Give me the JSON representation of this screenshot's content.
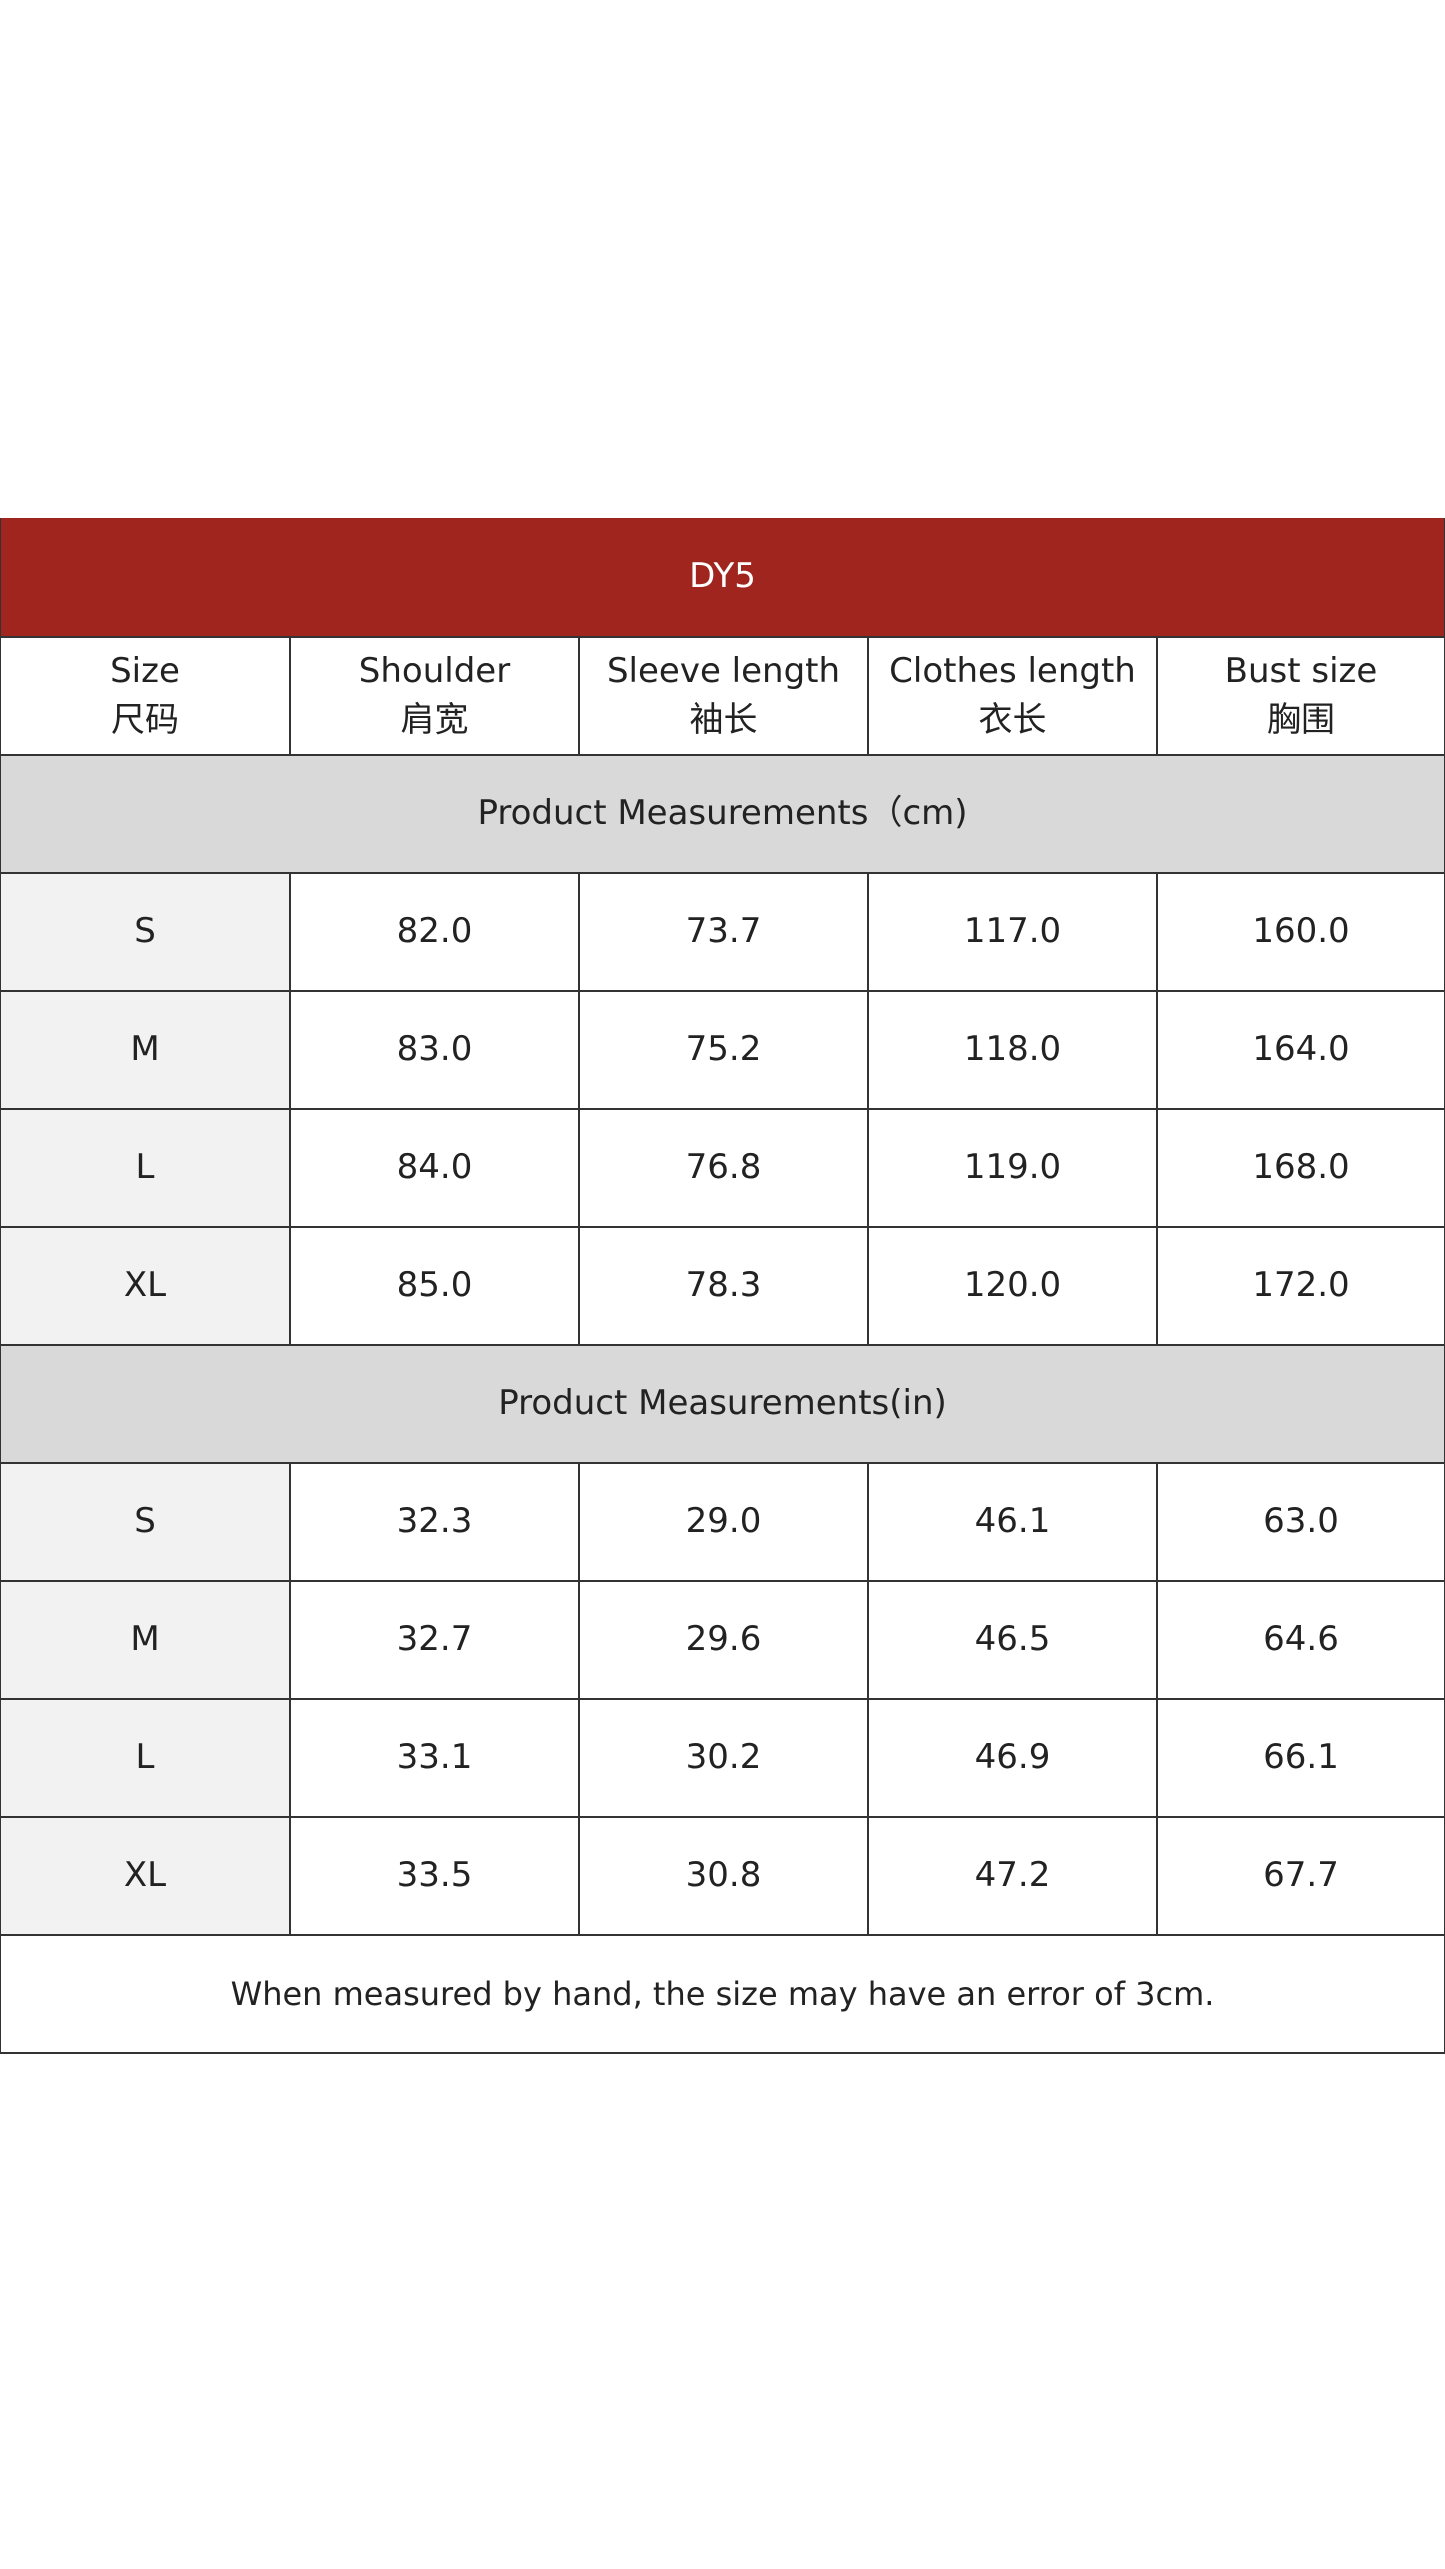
{
  "table": {
    "title": "DY5",
    "headers": [
      {
        "en": "Size",
        "zh": "尺码"
      },
      {
        "en": "Shoulder",
        "zh": "肩宽"
      },
      {
        "en": "Sleeve length",
        "zh": "袖长"
      },
      {
        "en": "Clothes length",
        "zh": "衣长"
      },
      {
        "en": "Bust size",
        "zh": "胸围"
      }
    ],
    "sections": [
      {
        "title": "Product Measurements（cm)",
        "rows": [
          [
            "S",
            "82.0",
            "73.7",
            "117.0",
            "160.0"
          ],
          [
            "M",
            "83.0",
            "75.2",
            "118.0",
            "164.0"
          ],
          [
            "L",
            "84.0",
            "76.8",
            "119.0",
            "168.0"
          ],
          [
            "XL",
            "85.0",
            "78.3",
            "120.0",
            "172.0"
          ]
        ]
      },
      {
        "title": "Product Measurements(in)",
        "rows": [
          [
            "S",
            "32.3",
            "29.0",
            "46.1",
            "63.0"
          ],
          [
            "M",
            "32.7",
            "29.6",
            "46.5",
            "64.6"
          ],
          [
            "L",
            "33.1",
            "30.2",
            "46.9",
            "66.1"
          ],
          [
            "XL",
            "33.5",
            "30.8",
            "47.2",
            "67.7"
          ]
        ]
      }
    ],
    "footer": "When measured by hand, the size may have an error of 3cm."
  }
}
